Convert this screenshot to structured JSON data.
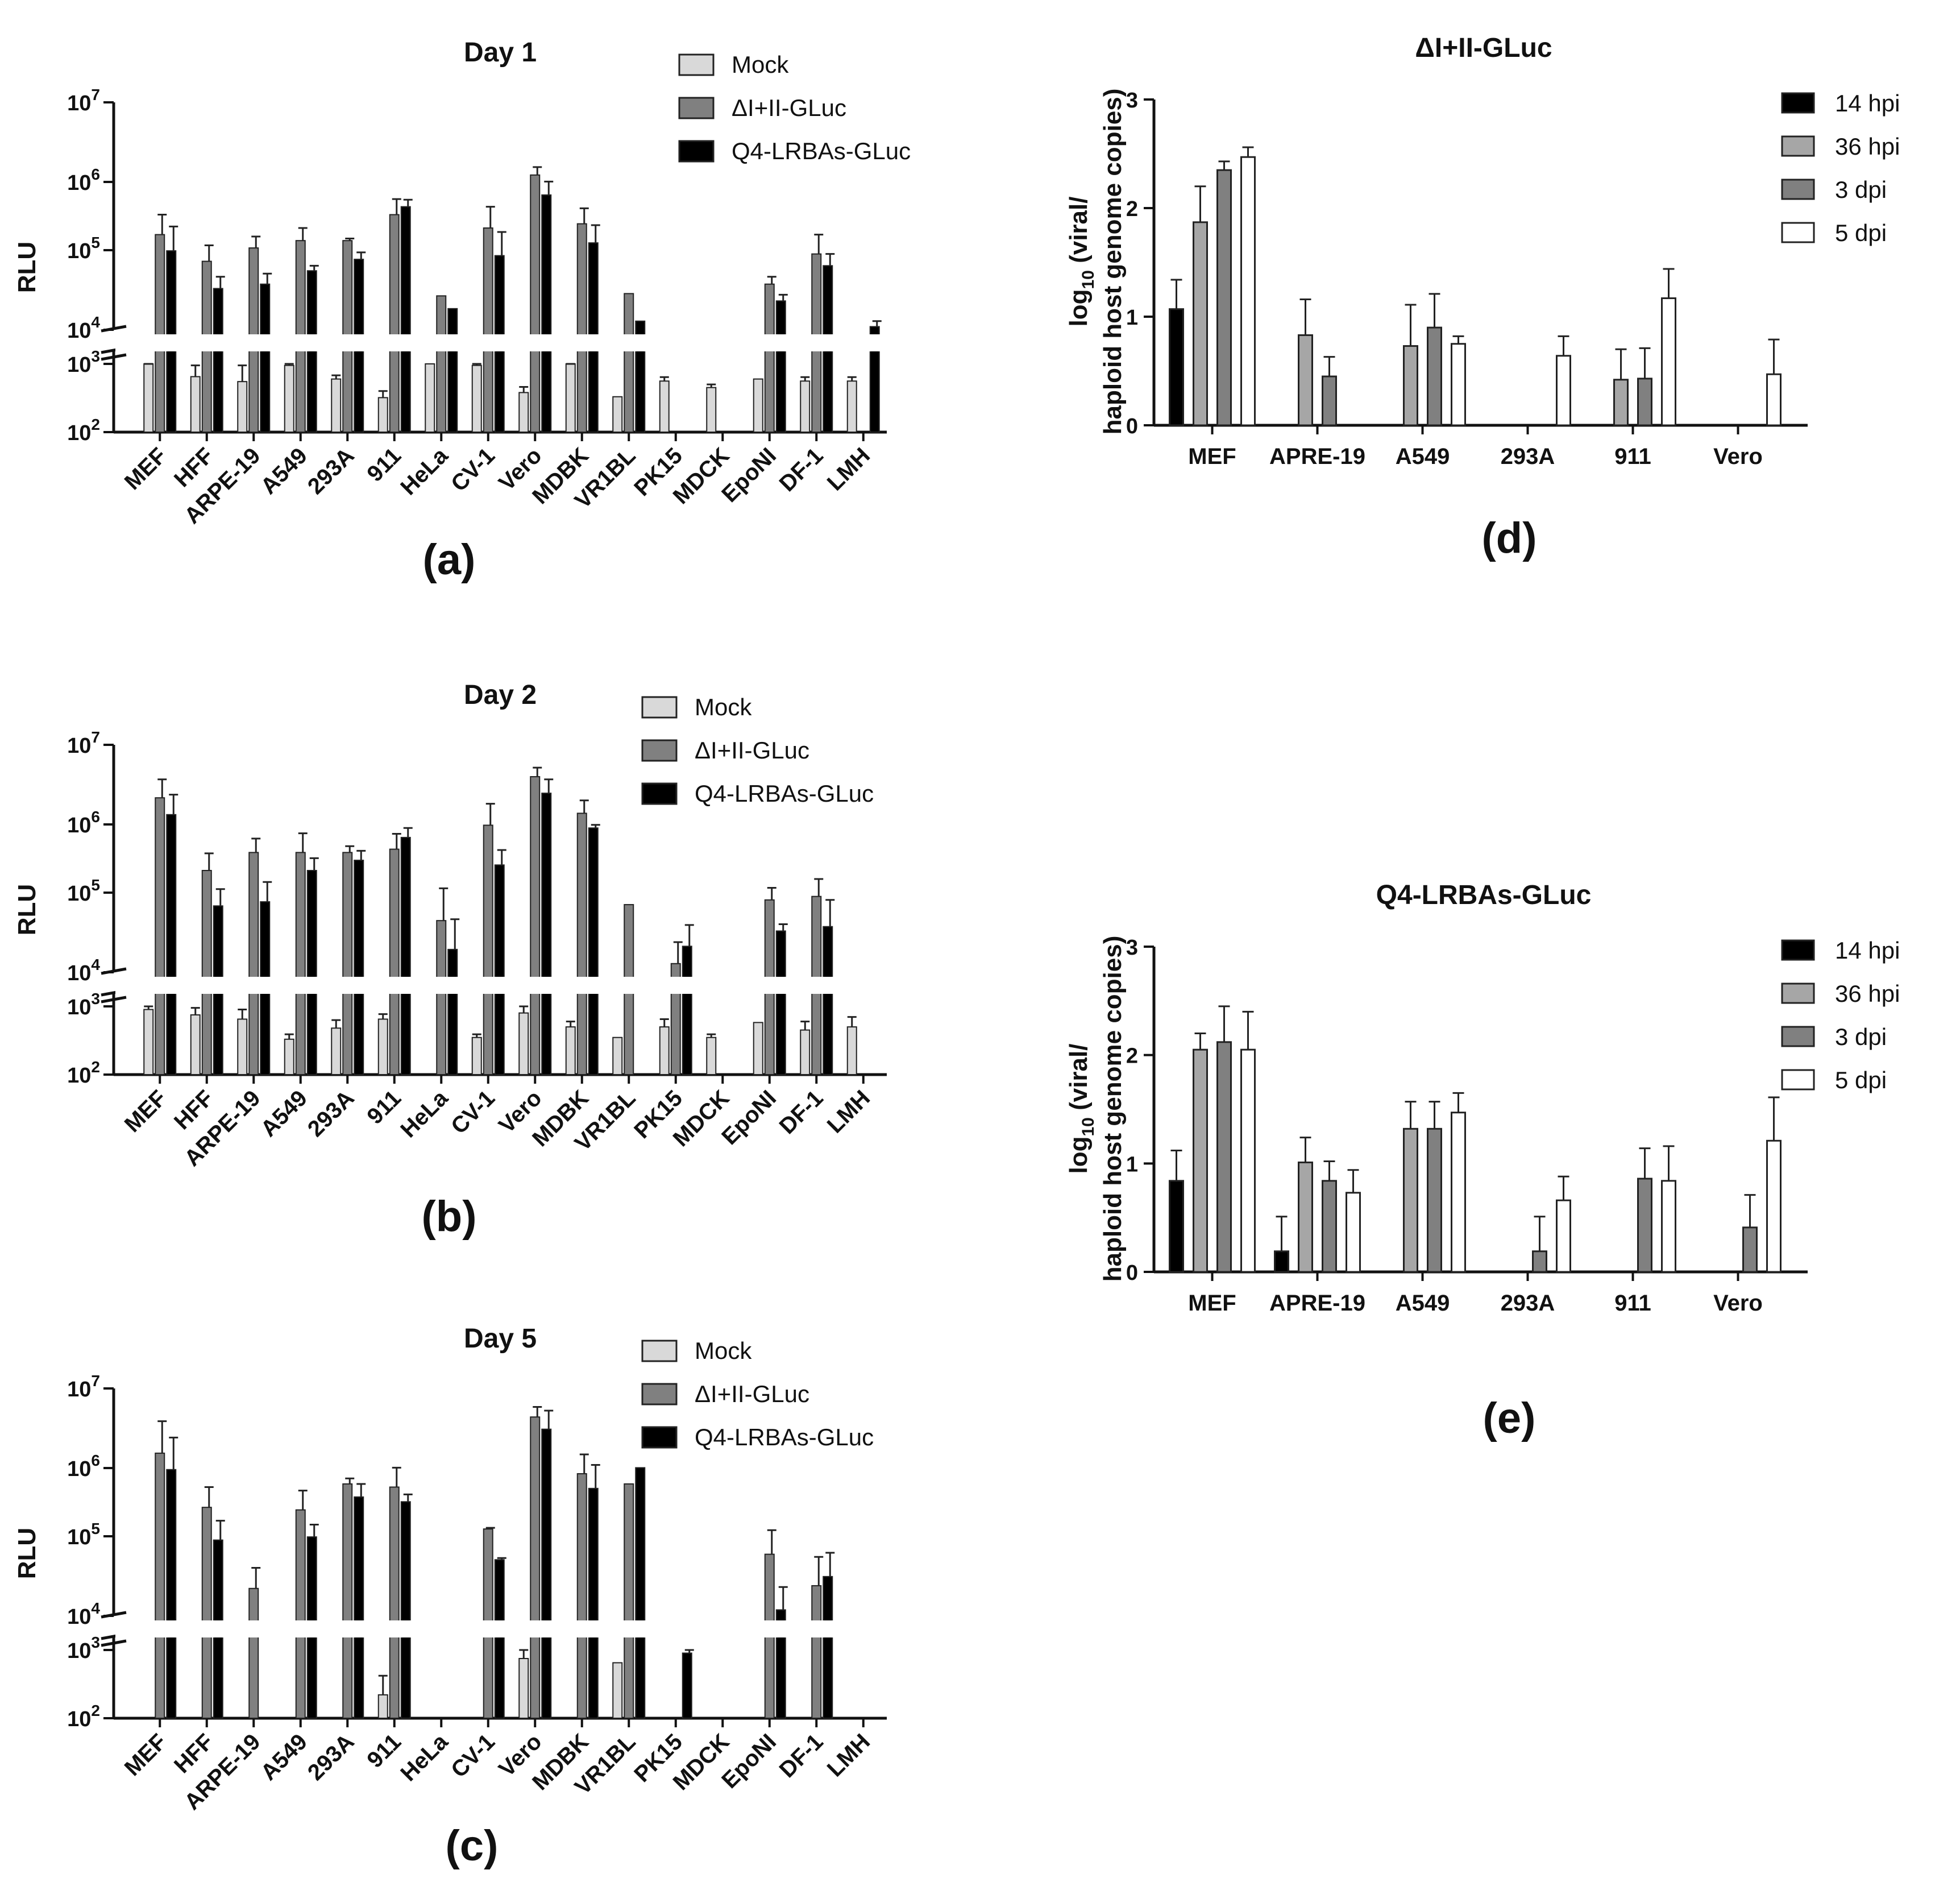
{
  "chart_data": [
    {
      "id": "a",
      "panel_label": "(a)",
      "type": "bar",
      "title": "Day 1",
      "ylabel": "RLU",
      "yscale": "log-broken",
      "ylim": [
        100,
        10000000
      ],
      "ybreak": [
        1000,
        10000
      ],
      "ytick_exps": [
        "2",
        "3",
        "4",
        "5",
        "6",
        "7"
      ],
      "categories": [
        "MEF",
        "HFF",
        "ARPE-19",
        "A549",
        "293A",
        "911",
        "HeLa",
        "CV-1",
        "Vero",
        "MDBK",
        "VR1BL",
        "PK15",
        "MDCK",
        "EpoNI",
        "DF-1",
        "LMH"
      ],
      "series": [
        {
          "name": "Mock",
          "color": "#d9d9d9",
          "values": [
            1300,
            650,
            550,
            950,
            600,
            320,
            1100,
            950,
            380,
            1050,
            330,
            560,
            450,
            600,
            560,
            560
          ],
          "errors": [
            200,
            300,
            400,
            150,
            80,
            80,
            0,
            150,
            80,
            150,
            0,
            80,
            50,
            0,
            80,
            80
          ]
        },
        {
          "name": "ΔI+II-GLuc",
          "color": "#808080",
          "values": [
            180000,
            80000,
            120000,
            150000,
            150000,
            330000,
            28000,
            220000,
            1100000,
            250000,
            30000,
            null,
            null,
            40000,
            100000,
            null
          ],
          "errors": [
            150000,
            50000,
            50000,
            70000,
            10000,
            200000,
            0,
            200000,
            300000,
            150000,
            0,
            null,
            null,
            10000,
            80000,
            null
          ]
        },
        {
          "name": "Q4-LRBAs-GLuc",
          "color": "#000000",
          "values": [
            110000,
            35000,
            40000,
            60000,
            85000,
            420000,
            19000,
            95000,
            600000,
            140000,
            13000,
            null,
            null,
            24000,
            70000,
            11000
          ],
          "errors": [
            120000,
            15000,
            15000,
            10000,
            20000,
            100000,
            0,
            100000,
            300000,
            100000,
            0,
            null,
            null,
            5000,
            30000,
            2000
          ]
        }
      ]
    },
    {
      "id": "b",
      "panel_label": "(b)",
      "type": "bar",
      "title": "Day 2",
      "ylabel": "RLU",
      "yscale": "log-broken",
      "ylim": [
        100,
        10000000
      ],
      "ybreak": [
        1000,
        10000
      ],
      "ytick_exps": [
        "2",
        "3",
        "4",
        "5",
        "6",
        "7"
      ],
      "categories": [
        "MEF",
        "HFF",
        "ARPE-19",
        "A549",
        "293A",
        "911",
        "HeLa",
        "CV-1",
        "Vero",
        "MDBK",
        "VR1BL",
        "PK15",
        "MDCK",
        "EpoNI",
        "DF-1",
        "LMH"
      ],
      "series": [
        {
          "name": "Mock",
          "color": "#d9d9d9",
          "values": [
            900,
            750,
            650,
            330,
            480,
            650,
            null,
            350,
            800,
            500,
            350,
            500,
            350,
            580,
            450,
            500
          ],
          "errors": [
            200,
            200,
            250,
            60,
            150,
            120,
            null,
            40,
            200,
            100,
            0,
            150,
            40,
            0,
            150,
            200
          ]
        },
        {
          "name": "ΔI+II-GLuc",
          "color": "#808080",
          "values": [
            2000000,
            220000,
            380000,
            380000,
            380000,
            420000,
            48000,
            870000,
            3800000,
            1250000,
            78000,
            13000,
            null,
            90000,
            100000,
            null
          ],
          "errors": [
            1500000,
            150000,
            200000,
            300000,
            80000,
            250000,
            80000,
            800000,
            1200000,
            600000,
            0,
            12000,
            null,
            40000,
            70000,
            null
          ]
        },
        {
          "name": "Q4-LRBAs-GLuc",
          "color": "#000000",
          "values": [
            1200000,
            75000,
            85000,
            220000,
            300000,
            600000,
            20000,
            260000,
            2300000,
            800000,
            null,
            22000,
            null,
            35000,
            40000,
            null
          ],
          "errors": [
            1000000,
            50000,
            70000,
            100000,
            100000,
            200000,
            30000,
            150000,
            1200000,
            80000,
            null,
            20000,
            null,
            8000,
            50000,
            null
          ]
        }
      ]
    },
    {
      "id": "c",
      "panel_label": "(c)",
      "type": "bar",
      "title": "Day 5",
      "ylabel": "RLU",
      "yscale": "log-broken",
      "ylim": [
        100,
        10000000
      ],
      "ybreak": [
        1000,
        10000
      ],
      "ytick_exps": [
        "2",
        "3",
        "4",
        "5",
        "6",
        "7"
      ],
      "categories": [
        "MEF",
        "HFF",
        "ARPE-19",
        "A549",
        "293A",
        "911",
        "HeLa",
        "CV-1",
        "Vero",
        "MDBK",
        "VR1BL",
        "PK15",
        "MDCK",
        "EpoNI",
        "DF-1",
        "LMH"
      ],
      "series": [
        {
          "name": "Mock",
          "color": "#d9d9d9",
          "values": [
            null,
            null,
            null,
            null,
            null,
            220,
            null,
            null,
            750,
            null,
            650,
            null,
            null,
            null,
            null,
            null
          ],
          "errors": [
            null,
            null,
            null,
            null,
            null,
            200,
            null,
            null,
            400,
            null,
            0,
            null,
            null,
            null,
            null,
            null
          ]
        },
        {
          "name": "ΔI+II-GLuc",
          "color": "#808080",
          "values": [
            1400000,
            270000,
            23000,
            250000,
            550000,
            500000,
            null,
            140000,
            4200000,
            750000,
            550000,
            null,
            null,
            65000,
            25000,
            null
          ],
          "errors": [
            2300000,
            230000,
            20000,
            200000,
            100000,
            400000,
            null,
            5000,
            1500000,
            600000,
            0,
            null,
            null,
            70000,
            35000,
            null
          ]
        },
        {
          "name": "Q4-LRBAs-GLuc",
          "color": "#000000",
          "values": [
            850000,
            100000,
            null,
            110000,
            370000,
            320000,
            null,
            55000,
            2900000,
            480000,
            900000,
            900,
            null,
            12000,
            33000,
            null
          ],
          "errors": [
            1400000,
            80000,
            null,
            50000,
            180000,
            80000,
            null,
            3000,
            2200000,
            500000,
            0,
            500,
            null,
            12000,
            35000,
            null
          ]
        }
      ]
    },
    {
      "id": "d",
      "panel_label": "(d)",
      "type": "bar",
      "title": "ΔI+II-GLuc",
      "ylabel_pre": "log",
      "ylabel_sub": "10",
      "ylabel_post": " (viral/",
      "ylabel_line2": "haploid host genome copies)",
      "ylim": [
        0,
        3
      ],
      "yticks": [
        "0",
        "1",
        "2",
        "3"
      ],
      "categories": [
        "MEF",
        "APRE-19",
        "A549",
        "293A",
        "911",
        "Vero"
      ],
      "series": [
        {
          "name": "14 hpi",
          "color": "#000000",
          "values": [
            1.07,
            0,
            0,
            0,
            0,
            0
          ],
          "errors": [
            0.27,
            0,
            0,
            0,
            0,
            0
          ]
        },
        {
          "name": "36 hpi",
          "color": "#a6a6a6",
          "values": [
            1.87,
            0.83,
            0.73,
            0,
            0.42,
            0
          ],
          "errors": [
            0.33,
            0.33,
            0.38,
            0,
            0.28,
            0
          ]
        },
        {
          "name": "3 dpi",
          "color": "#808080",
          "values": [
            2.35,
            0.45,
            0.9,
            0,
            0.43,
            0
          ],
          "errors": [
            0.08,
            0.18,
            0.31,
            0,
            0.28,
            0
          ]
        },
        {
          "name": "5 dpi",
          "color": "#ffffff",
          "values": [
            2.47,
            0,
            0.75,
            0.64,
            1.17,
            0.47
          ],
          "errors": [
            0.09,
            0,
            0.07,
            0.18,
            0.27,
            0.32
          ]
        }
      ]
    },
    {
      "id": "e",
      "panel_label": "(e)",
      "type": "bar",
      "title": "Q4-LRBAs-GLuc",
      "ylabel_pre": "log",
      "ylabel_sub": "10",
      "ylabel_post": " (viral/",
      "ylabel_line2": "haploid host genome copies)",
      "ylim": [
        0,
        3
      ],
      "yticks": [
        "0",
        "1",
        "2",
        "3"
      ],
      "categories": [
        "MEF",
        "APRE-19",
        "A549",
        "293A",
        "911",
        "Vero"
      ],
      "series": [
        {
          "name": "14 hpi",
          "color": "#000000",
          "values": [
            0.84,
            0.19,
            0,
            0,
            0,
            0
          ],
          "errors": [
            0.28,
            0.32,
            0,
            0,
            0,
            0
          ]
        },
        {
          "name": "36 hpi",
          "color": "#a6a6a6",
          "values": [
            2.05,
            1.01,
            1.32,
            0,
            0,
            0
          ],
          "errors": [
            0.15,
            0.23,
            0.25,
            0,
            0,
            0
          ]
        },
        {
          "name": "3 dpi",
          "color": "#808080",
          "values": [
            2.12,
            0.84,
            1.32,
            0.19,
            0.86,
            0.41
          ],
          "errors": [
            0.33,
            0.18,
            0.25,
            0.32,
            0.28,
            0.3
          ]
        },
        {
          "name": "5 dpi",
          "color": "#ffffff",
          "values": [
            2.05,
            0.73,
            1.47,
            0.66,
            0.84,
            1.21
          ],
          "errors": [
            0.35,
            0.21,
            0.18,
            0.22,
            0.32,
            0.4
          ]
        }
      ]
    }
  ]
}
